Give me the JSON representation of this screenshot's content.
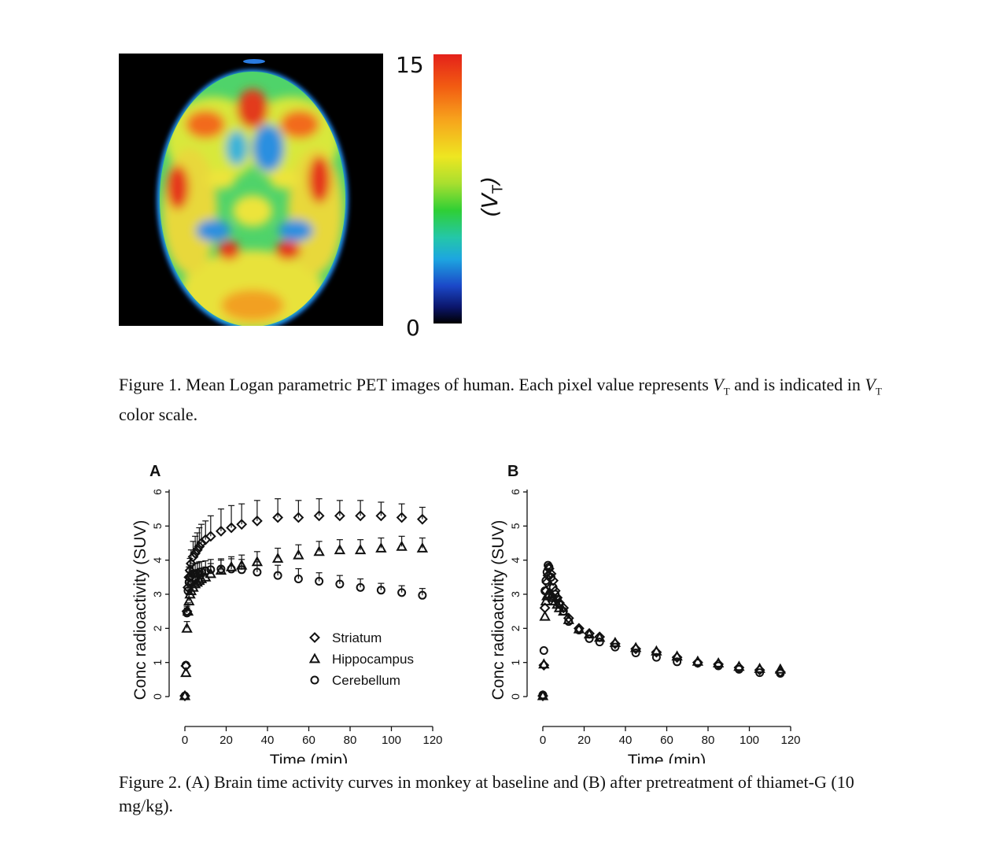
{
  "figure1": {
    "colorbar_max": "15",
    "colorbar_min": "0",
    "colorbar_label": "V",
    "colorbar_label_sub": "T",
    "caption_part1": "Figure 1. Mean Logan parametric PET images of human. Each pixel value represents ",
    "caption_part2": "and is indicated in ",
    "caption_part3": "color scale.",
    "vt_symbol": "V",
    "vt_sub": "T"
  },
  "figure2": {
    "caption": "Figure 2. (A) Brain time activity curves in monkey at baseline and (B) after pretreatment of thiamet-G (10 mg/kg)."
  },
  "chart_data": [
    {
      "type": "scatter",
      "panel_label": "A",
      "xlabel": "Time (min)",
      "ylabel": "Conc radioactivity (SUV)",
      "xlim": [
        0,
        120
      ],
      "ylim": [
        0,
        6
      ],
      "xticks": [
        "0",
        "20",
        "40",
        "60",
        "80",
        "100",
        "120"
      ],
      "yticks": [
        "0",
        "1",
        "2",
        "3",
        "4",
        "5",
        "6"
      ],
      "legend": [
        "Striatum",
        "Hippocampus",
        "Cerebellum"
      ],
      "legend_position": "bottom-right",
      "series": [
        {
          "name": "Striatum",
          "marker": "diamond",
          "x": [
            0,
            0.5,
            1,
            1.5,
            2,
            2.5,
            3,
            4,
            5,
            6,
            7,
            8,
            10,
            12.5,
            17.5,
            22.5,
            27.5,
            35,
            45,
            55,
            65,
            75,
            85,
            95,
            105,
            115
          ],
          "y": [
            0.02,
            0.9,
            2.5,
            3.2,
            3.5,
            3.7,
            3.9,
            4.1,
            4.2,
            4.3,
            4.4,
            4.5,
            4.6,
            4.7,
            4.85,
            4.95,
            5.05,
            5.15,
            5.25,
            5.25,
            5.3,
            5.3,
            5.3,
            5.3,
            5.25,
            5.2
          ],
          "err": [
            0,
            0,
            0.15,
            0.2,
            0.3,
            0.35,
            0.4,
            0.45,
            0.5,
            0.5,
            0.55,
            0.55,
            0.55,
            0.6,
            0.65,
            0.65,
            0.6,
            0.6,
            0.55,
            0.5,
            0.5,
            0.45,
            0.45,
            0.4,
            0.4,
            0.35
          ]
        },
        {
          "name": "Hippocampus",
          "marker": "triangle",
          "x": [
            0,
            0.5,
            1,
            1.5,
            2,
            2.5,
            3,
            4,
            5,
            6,
            7,
            8,
            10,
            12.5,
            17.5,
            22.5,
            27.5,
            35,
            45,
            55,
            65,
            75,
            85,
            95,
            105,
            115
          ],
          "y": [
            0.02,
            0.7,
            2.0,
            2.5,
            2.8,
            3.0,
            3.1,
            3.2,
            3.3,
            3.35,
            3.4,
            3.45,
            3.5,
            3.6,
            3.7,
            3.8,
            3.85,
            3.95,
            4.05,
            4.15,
            4.25,
            4.3,
            4.3,
            4.35,
            4.4,
            4.35
          ],
          "err": [
            0,
            0,
            0.2,
            0.25,
            0.3,
            0.3,
            0.3,
            0.3,
            0.3,
            0.3,
            0.3,
            0.3,
            0.3,
            0.3,
            0.3,
            0.3,
            0.3,
            0.3,
            0.3,
            0.3,
            0.3,
            0.3,
            0.3,
            0.3,
            0.3,
            0.3
          ]
        },
        {
          "name": "Cerebellum",
          "marker": "circle",
          "x": [
            0,
            0.5,
            1,
            1.5,
            2,
            2.5,
            3,
            4,
            5,
            6,
            7,
            8,
            10,
            12.5,
            17.5,
            22.5,
            27.5,
            35,
            45,
            55,
            65,
            75,
            85,
            95,
            105,
            115
          ],
          "y": [
            0.02,
            0.92,
            2.45,
            3.1,
            3.35,
            3.5,
            3.55,
            3.6,
            3.6,
            3.62,
            3.65,
            3.66,
            3.68,
            3.72,
            3.74,
            3.74,
            3.72,
            3.65,
            3.55,
            3.45,
            3.38,
            3.3,
            3.2,
            3.12,
            3.05,
            2.97
          ],
          "err": [
            0,
            0,
            0.15,
            0.25,
            0.3,
            0.3,
            0.3,
            0.3,
            0.3,
            0.3,
            0.3,
            0.3,
            0.3,
            0.3,
            0.3,
            0.3,
            0.3,
            0.3,
            0.3,
            0.3,
            0.25,
            0.25,
            0.25,
            0.2,
            0.2,
            0.2
          ]
        }
      ]
    },
    {
      "type": "scatter",
      "panel_label": "B",
      "xlabel": "Time (min)",
      "ylabel": "Conc radioactivity (SUV)",
      "xlim": [
        0,
        120
      ],
      "ylim": [
        0,
        6
      ],
      "xticks": [
        "0",
        "20",
        "40",
        "60",
        "80",
        "100",
        "120"
      ],
      "yticks": [
        "0",
        "1",
        "2",
        "3",
        "4",
        "5",
        "6"
      ],
      "series": [
        {
          "name": "Striatum",
          "marker": "diamond",
          "x": [
            0,
            0.5,
            1,
            1.5,
            2,
            2.5,
            3,
            4,
            5,
            6,
            7,
            8,
            10,
            12.5,
            17.5,
            22.5,
            27.5,
            35,
            45,
            55,
            65,
            75,
            85,
            95,
            105,
            115
          ],
          "y": [
            0.02,
            0.92,
            2.6,
            3.1,
            3.35,
            3.55,
            3.75,
            3.6,
            3.4,
            3.1,
            2.9,
            2.75,
            2.6,
            2.3,
            2.0,
            1.85,
            1.75,
            1.55,
            1.4,
            1.3,
            1.15,
            1.0,
            0.95,
            0.85,
            0.78,
            0.72
          ],
          "err": []
        },
        {
          "name": "Hippocampus",
          "marker": "triangle",
          "x": [
            0,
            0.5,
            1,
            1.5,
            2,
            2.5,
            3,
            4,
            5,
            6,
            7,
            8,
            10,
            12.5,
            17.5,
            22.5,
            27.5,
            35,
            45,
            55,
            65,
            75,
            85,
            95,
            105,
            115
          ],
          "y": [
            0.02,
            0.95,
            2.35,
            2.8,
            2.95,
            3.0,
            3.0,
            2.95,
            2.9,
            2.8,
            2.7,
            2.6,
            2.5,
            2.25,
            1.98,
            1.83,
            1.73,
            1.58,
            1.43,
            1.33,
            1.18,
            1.03,
            0.98,
            0.88,
            0.82,
            0.8
          ],
          "err": []
        },
        {
          "name": "Cerebellum",
          "marker": "circle",
          "x": [
            0,
            0.5,
            1,
            1.5,
            2,
            2.5,
            3,
            4,
            5,
            6,
            7,
            8,
            10,
            12.5,
            17.5,
            22.5,
            27.5,
            35,
            45,
            55,
            65,
            75,
            85,
            95,
            105,
            115
          ],
          "y": [
            0.05,
            1.35,
            3.1,
            3.4,
            3.65,
            3.85,
            3.8,
            3.5,
            3.2,
            3.0,
            2.85,
            2.7,
            2.5,
            2.2,
            1.95,
            1.7,
            1.6,
            1.45,
            1.28,
            1.15,
            1.02,
            0.98,
            0.9,
            0.8,
            0.7,
            0.68
          ],
          "err": []
        }
      ]
    }
  ]
}
